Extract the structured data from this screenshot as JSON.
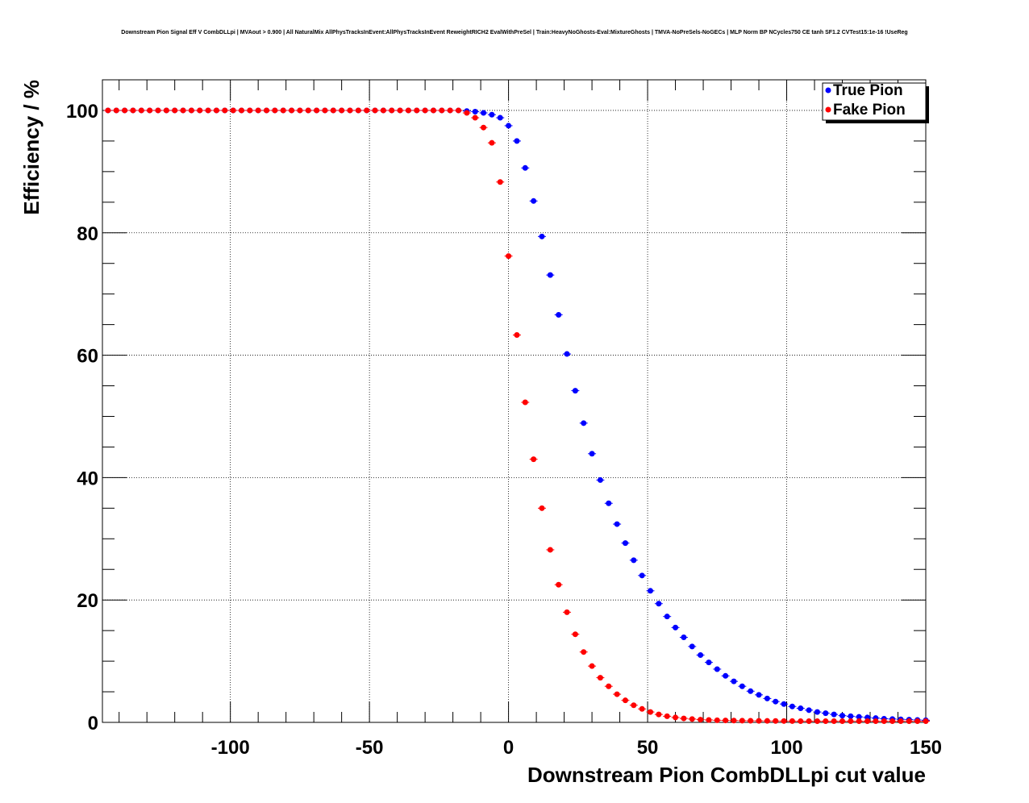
{
  "chart_data": {
    "type": "scatter",
    "title": "Downstream Pion Signal Eff V CombDLLpi | MVAout > 0.900 | All NaturalMix AllPhysTracksInEvent:AllPhysTracksInEvent ReweightRICH2 EvalWithPreSel | Train:HeavyNoGhosts-Eval:MixtureGhosts | TMVA-NoPreSels-NoGECs | MLP Norm BP NCycles750 CE tanh SF1.2 CVTest15:1e-16 !UseReg",
    "xlabel": "Downstream Pion CombDLLpi cut value",
    "ylabel": "Efficiency / %",
    "xlim": [
      -146,
      150
    ],
    "ylim": [
      0,
      105
    ],
    "xticks": [
      -100,
      -50,
      0,
      50,
      100,
      150
    ],
    "yticks": [
      0,
      20,
      40,
      60,
      80,
      100
    ],
    "grid": true,
    "legend_position": "top-right",
    "x": [
      -144,
      -141,
      -138,
      -135,
      -132,
      -129,
      -126,
      -123,
      -120,
      -117,
      -114,
      -111,
      -108,
      -105,
      -102,
      -99,
      -96,
      -93,
      -90,
      -87,
      -84,
      -81,
      -78,
      -75,
      -72,
      -69,
      -66,
      -63,
      -60,
      -57,
      -54,
      -51,
      -48,
      -45,
      -42,
      -39,
      -36,
      -33,
      -30,
      -27,
      -24,
      -21,
      -18,
      -15,
      -12,
      -9,
      -6,
      -3,
      0,
      3,
      6,
      9,
      12,
      15,
      18,
      21,
      24,
      27,
      30,
      33,
      36,
      39,
      42,
      45,
      48,
      51,
      54,
      57,
      60,
      63,
      66,
      69,
      72,
      75,
      78,
      81,
      84,
      87,
      90,
      93,
      96,
      99,
      102,
      105,
      108,
      111,
      114,
      117,
      120,
      123,
      126,
      129,
      132,
      135,
      138,
      141,
      144,
      147,
      150
    ],
    "series": [
      {
        "name": "True Pion",
        "color": "#0000ff",
        "values": [
          100,
          100,
          100,
          100,
          100,
          100,
          100,
          100,
          100,
          100,
          100,
          100,
          100,
          100,
          100,
          100,
          100,
          100,
          100,
          100,
          100,
          100,
          100,
          100,
          100,
          100,
          100,
          100,
          100,
          100,
          100,
          100,
          100,
          100,
          100,
          100,
          100,
          100,
          100,
          100,
          100,
          100,
          100,
          99.9,
          99.8,
          99.6,
          99.3,
          98.8,
          97.5,
          95.0,
          90.6,
          85.2,
          79.4,
          73.1,
          66.6,
          60.2,
          54.2,
          48.9,
          43.9,
          39.6,
          35.8,
          32.4,
          29.3,
          26.5,
          24.0,
          21.5,
          19.4,
          17.3,
          15.5,
          13.9,
          12.4,
          11.0,
          9.8,
          8.7,
          7.6,
          6.7,
          5.9,
          5.1,
          4.5,
          3.9,
          3.4,
          3.0,
          2.6,
          2.3,
          2.0,
          1.7,
          1.5,
          1.3,
          1.1,
          1.0,
          0.9,
          0.8,
          0.7,
          0.6,
          0.55,
          0.5,
          0.45,
          0.4,
          0.35
        ]
      },
      {
        "name": "Fake Pion",
        "color": "#ff0000",
        "values": [
          100,
          100,
          100,
          100,
          100,
          100,
          100,
          100,
          100,
          100,
          100,
          100,
          100,
          100,
          100,
          100,
          100,
          100,
          100,
          100,
          100,
          100,
          100,
          100,
          100,
          100,
          100,
          100,
          100,
          100,
          100,
          100,
          100,
          100,
          100,
          100,
          100,
          100,
          100,
          100,
          100,
          100,
          100,
          99.6,
          98.8,
          97.2,
          94.7,
          88.3,
          76.2,
          63.3,
          52.3,
          43.0,
          35.0,
          28.2,
          22.5,
          18.0,
          14.4,
          11.5,
          9.2,
          7.3,
          5.9,
          4.6,
          3.6,
          2.8,
          2.2,
          1.7,
          1.3,
          1.0,
          0.8,
          0.65,
          0.55,
          0.45,
          0.4,
          0.35,
          0.32,
          0.3,
          0.28,
          0.26,
          0.25,
          0.24,
          0.23,
          0.22,
          0.21,
          0.2,
          0.2,
          0.2,
          0.2,
          0.2,
          0.2,
          0.2,
          0.2,
          0.2,
          0.2,
          0.2,
          0.2,
          0.2,
          0.2,
          0.2,
          0.2
        ]
      }
    ]
  }
}
